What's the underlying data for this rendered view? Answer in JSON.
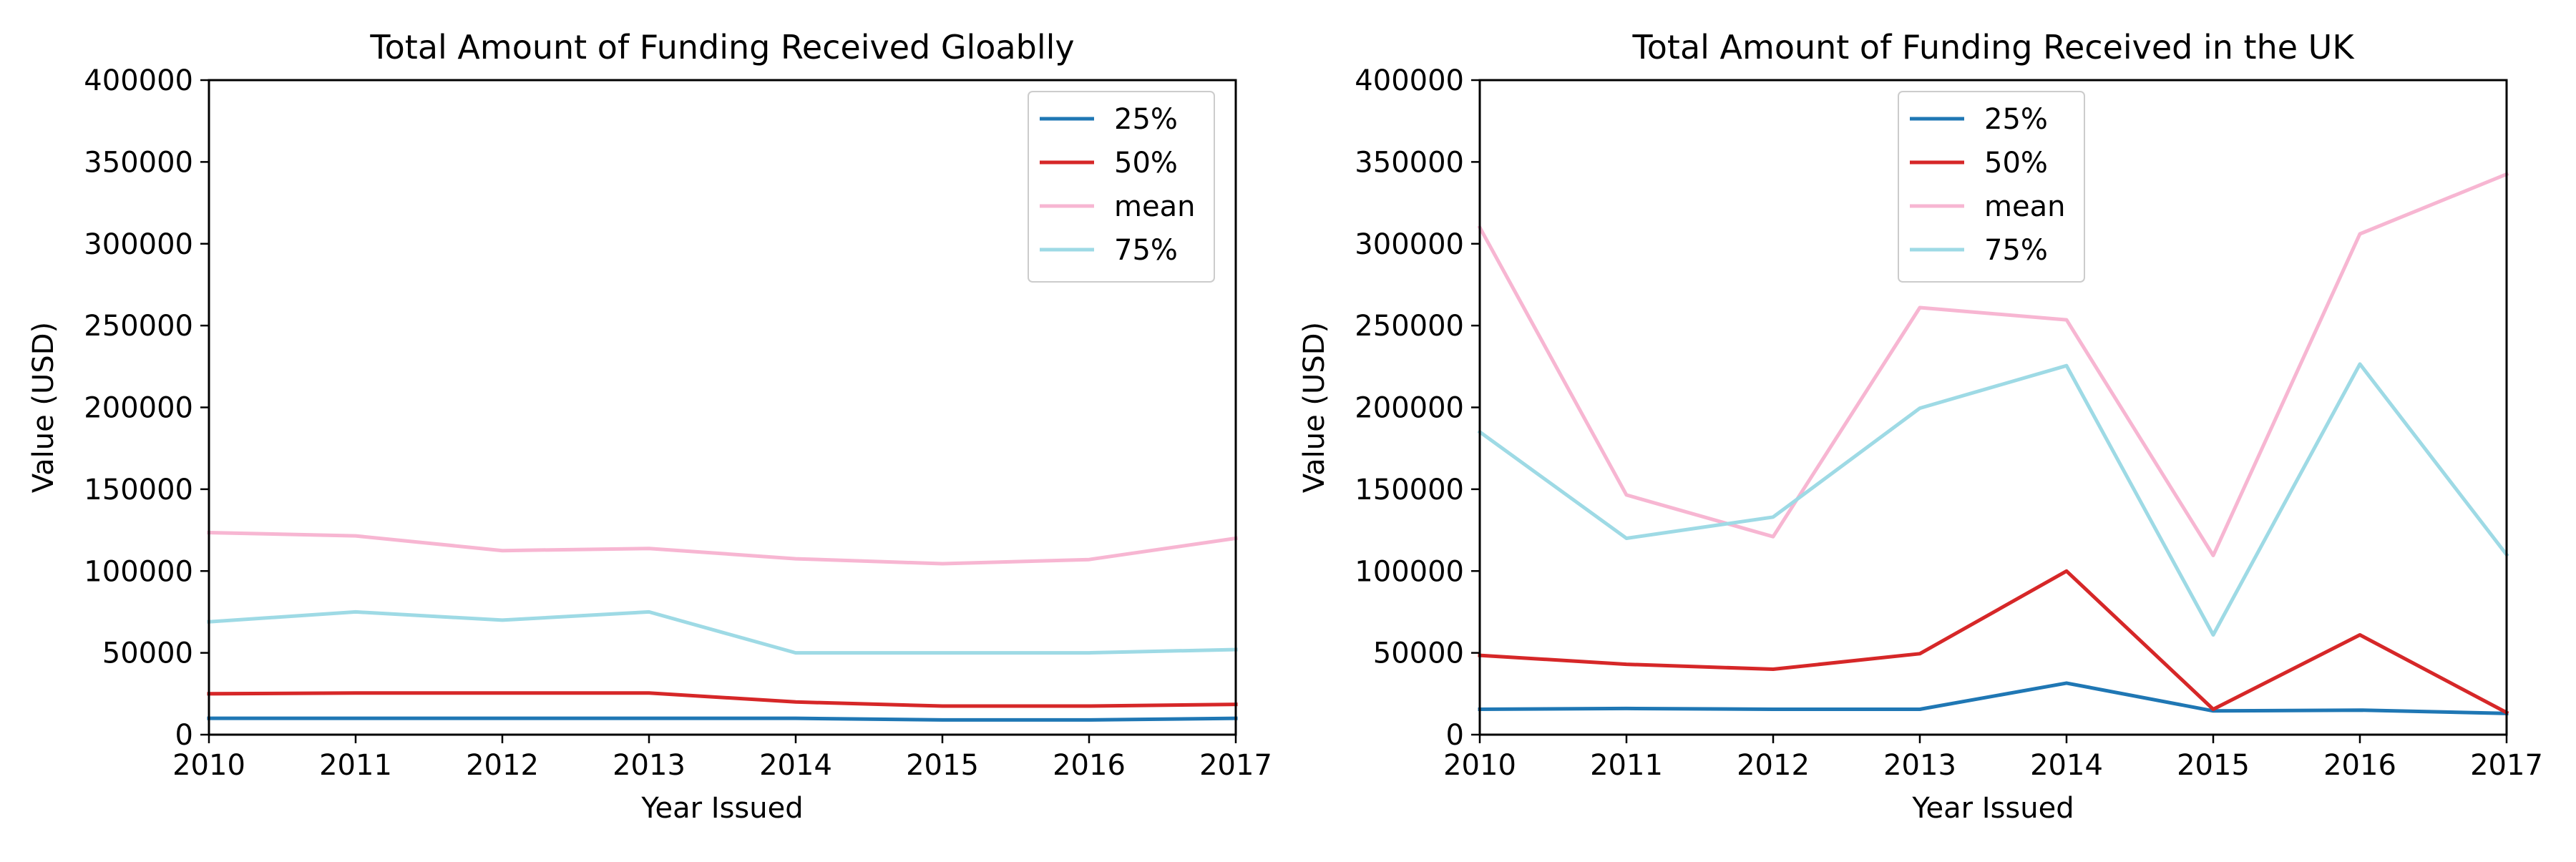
{
  "chart_data": [
    {
      "type": "line",
      "title": "Total Amount of Funding Received Gloablly",
      "xlabel": "Year Issued",
      "ylabel": "Value (USD)",
      "x": [
        2010,
        2011,
        2012,
        2013,
        2014,
        2015,
        2016,
        2017
      ],
      "xlim": [
        2010,
        2017
      ],
      "ylim": [
        0,
        400000
      ],
      "yticks": [
        0,
        50000,
        100000,
        150000,
        200000,
        250000,
        300000,
        350000,
        400000
      ],
      "grid": false,
      "legend_position": "top-right",
      "series": [
        {
          "name": "25%",
          "color": "#1f77b4",
          "values": [
            10000,
            10000,
            10000,
            10000,
            10000,
            9000,
            9000,
            10000
          ]
        },
        {
          "name": "50%",
          "color": "#d62728",
          "values": [
            25000,
            25500,
            25500,
            25500,
            20000,
            17500,
            17500,
            18500
          ]
        },
        {
          "name": "mean",
          "color": "#f7b6d2",
          "values": [
            123500,
            121500,
            112500,
            113800,
            107500,
            104500,
            107000,
            120000
          ]
        },
        {
          "name": "75%",
          "color": "#9edae5",
          "values": [
            69000,
            75000,
            70000,
            75000,
            50000,
            50000,
            50000,
            52000
          ]
        }
      ]
    },
    {
      "type": "line",
      "title": "Total Amount of Funding Received in the UK",
      "xlabel": "Year Issued",
      "ylabel": "Value (USD)",
      "x": [
        2010,
        2011,
        2012,
        2013,
        2014,
        2015,
        2016,
        2017
      ],
      "xlim": [
        2010,
        2017
      ],
      "ylim": [
        0,
        400000
      ],
      "yticks": [
        0,
        50000,
        100000,
        150000,
        200000,
        250000,
        300000,
        350000,
        400000
      ],
      "grid": false,
      "legend_position": "top-center",
      "series": [
        {
          "name": "25%",
          "color": "#1f77b4",
          "values": [
            15500,
            16000,
            15500,
            15500,
            31500,
            14500,
            15000,
            13000
          ]
        },
        {
          "name": "50%",
          "color": "#d62728",
          "values": [
            48500,
            43000,
            40000,
            49500,
            100000,
            15500,
            61000,
            13500
          ]
        },
        {
          "name": "mean",
          "color": "#f7b6d2",
          "values": [
            310000,
            146500,
            121000,
            261000,
            253500,
            109500,
            306000,
            342500
          ]
        },
        {
          "name": "75%",
          "color": "#9edae5",
          "values": [
            185000,
            120000,
            133000,
            199500,
            225500,
            61000,
            226500,
            110000
          ]
        }
      ]
    }
  ]
}
